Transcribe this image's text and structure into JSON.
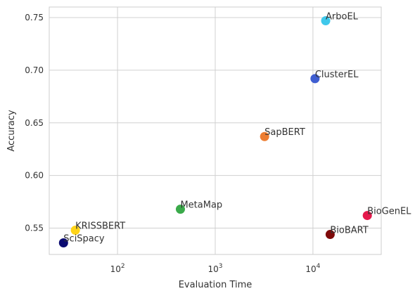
{
  "chart_data": {
    "type": "scatter",
    "title": "",
    "xlabel": "Evaluation Time",
    "ylabel": "Accuracy",
    "xscale": "log",
    "xlim": [
      20,
      50000
    ],
    "ylim": [
      0.525,
      0.76
    ],
    "grid": true,
    "x_ticks": [
      100,
      1000,
      10000
    ],
    "x_tick_labels": [
      {
        "base": "10",
        "exp": "2"
      },
      {
        "base": "10",
        "exp": "3"
      },
      {
        "base": "10",
        "exp": "4"
      }
    ],
    "y_ticks": [
      0.55,
      0.6,
      0.65,
      0.7,
      0.75
    ],
    "y_tick_labels": [
      "0.55",
      "0.60",
      "0.65",
      "0.70",
      "0.75"
    ],
    "points": [
      {
        "label": "ArboEL",
        "x": 13500,
        "y": 0.747,
        "color": "#3fc8eb"
      },
      {
        "label": "ClusterEL",
        "x": 10500,
        "y": 0.692,
        "color": "#3f5ed1"
      },
      {
        "label": "SapBERT",
        "x": 3200,
        "y": 0.637,
        "color": "#ed7d31"
      },
      {
        "label": "MetaMap",
        "x": 440,
        "y": 0.568,
        "color": "#3aaa4a"
      },
      {
        "label": "BioGenEL",
        "x": 36000,
        "y": 0.562,
        "color": "#e5194b"
      },
      {
        "label": "KRISSBERT",
        "x": 37,
        "y": 0.548,
        "color": "#ffd418"
      },
      {
        "label": "BioBART",
        "x": 15000,
        "y": 0.544,
        "color": "#7f0a0a"
      },
      {
        "label": "SciSpacy",
        "x": 28,
        "y": 0.536,
        "color": "#0b0b72"
      }
    ]
  }
}
